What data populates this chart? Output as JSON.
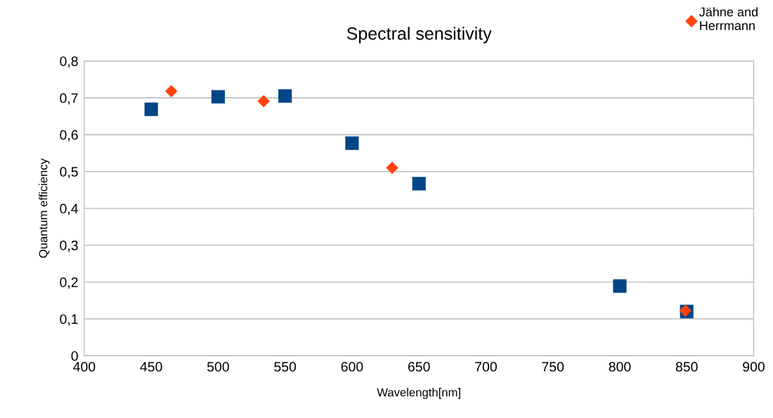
{
  "chart_data": {
    "type": "scatter",
    "title": "Spectral sensitivity",
    "xlabel": "Wavelength[nm]",
    "ylabel": "Quantum efficiency",
    "series": [
      {
        "name": "Jähne and Herrmann",
        "color": "#ff420e",
        "marker": "diamond",
        "x": [
          465,
          534,
          630,
          849
        ],
        "values": [
          0.718,
          0.691,
          0.51,
          0.122
        ]
      },
      {
        "color": "#004586",
        "marker": "square",
        "x": [
          450,
          500,
          550,
          600,
          650,
          800,
          850
        ],
        "values": [
          0.669,
          0.703,
          0.705,
          0.577,
          0.467,
          0.189,
          0.12
        ]
      }
    ],
    "xlim": [
      400,
      900
    ],
    "xticks": [
      400,
      450,
      500,
      550,
      600,
      650,
      700,
      750,
      800,
      850,
      900
    ],
    "ylim": [
      0,
      0.8
    ],
    "yticks": [
      {
        "value": 0,
        "label": "0"
      },
      {
        "value": 0.1,
        "label": "0,1"
      },
      {
        "value": 0.2,
        "label": "0,2"
      },
      {
        "value": 0.3,
        "label": "0,3"
      },
      {
        "value": 0.4,
        "label": "0,4"
      },
      {
        "value": 0.5,
        "label": "0,5"
      },
      {
        "value": 0.6,
        "label": "0,6"
      },
      {
        "value": 0.7,
        "label": "0,7"
      },
      {
        "value": 0.8,
        "label": "0,8"
      }
    ],
    "grid": "y",
    "legend": "top right"
  }
}
